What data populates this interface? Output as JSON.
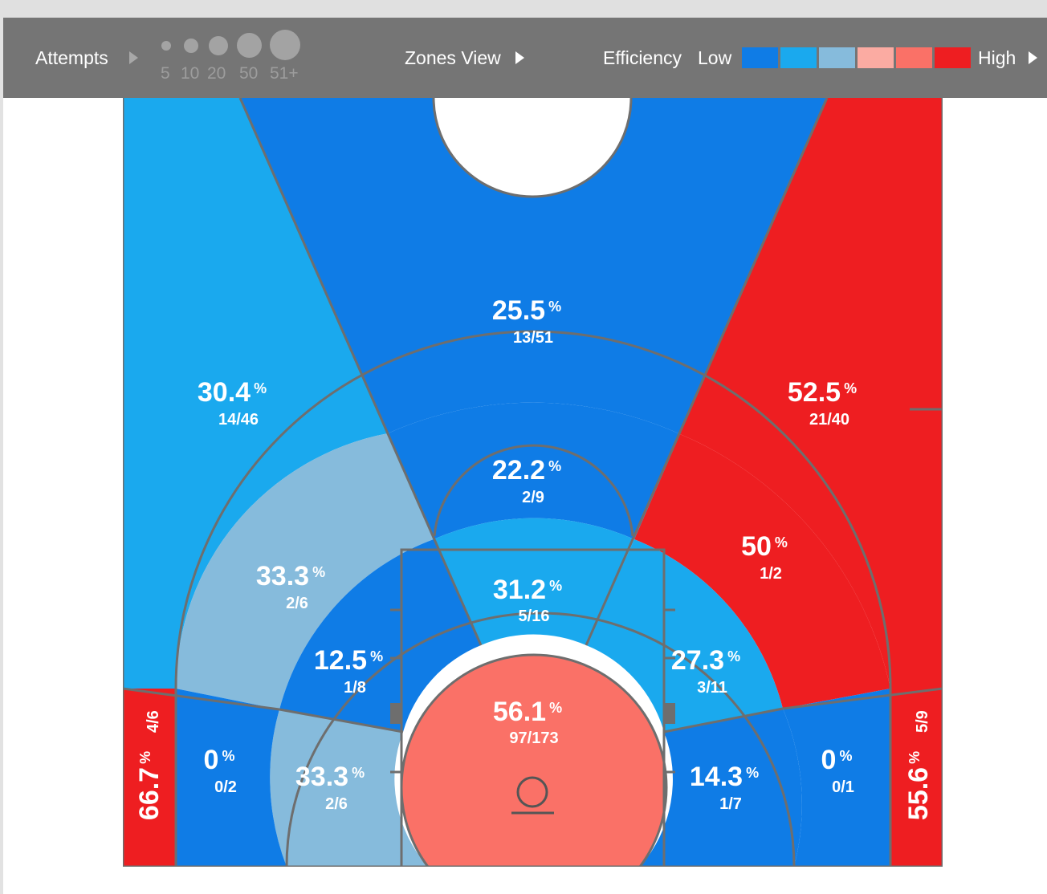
{
  "toolbar": {
    "attempts_label": "Attempts",
    "size_legend": [
      "5",
      "10",
      "20",
      "50",
      "51+"
    ],
    "view_label": "Zones View",
    "efficiency_label": "Efficiency",
    "low_label": "Low",
    "high_label": "High",
    "colors": [
      "#0f7ce6",
      "#1aa9ee",
      "#86bbdc",
      "#fbaba2",
      "#fa7167",
      "#ee1e21"
    ]
  },
  "chart_data": {
    "type": "shot-zone-chart",
    "color_scale": {
      "low": "#0f7ce6",
      "high": "#ee1e21"
    },
    "zones": [
      {
        "zone": "above-the-break-3-center",
        "pct": "25.5",
        "made": 13,
        "attempts": 51,
        "fg": "13/51",
        "color": "#0f7ce6"
      },
      {
        "zone": "above-the-break-3-left",
        "pct": "30.4",
        "made": 14,
        "attempts": 46,
        "fg": "14/46",
        "color": "#1aa9ee"
      },
      {
        "zone": "above-the-break-3-right",
        "pct": "52.5",
        "made": 21,
        "attempts": 40,
        "fg": "21/40",
        "color": "#ee1e21"
      },
      {
        "zone": "mid-range-top",
        "pct": "22.2",
        "made": 2,
        "attempts": 9,
        "fg": "2/9",
        "color": "#0f7ce6"
      },
      {
        "zone": "mid-range-left-wing",
        "pct": "33.3",
        "made": 2,
        "attempts": 6,
        "fg": "2/6",
        "color": "#86bbdc"
      },
      {
        "zone": "mid-range-right-wing",
        "pct": "50",
        "made": 1,
        "attempts": 2,
        "fg": "1/2",
        "color": "#ee1e21"
      },
      {
        "zone": "paint-top",
        "pct": "31.2",
        "made": 5,
        "attempts": 16,
        "fg": "5/16",
        "color": "#1aa9ee"
      },
      {
        "zone": "short-mid-left",
        "pct": "12.5",
        "made": 1,
        "attempts": 8,
        "fg": "1/8",
        "color": "#0f7ce6"
      },
      {
        "zone": "short-mid-right",
        "pct": "27.3",
        "made": 3,
        "attempts": 11,
        "fg": "3/11",
        "color": "#1aa9ee"
      },
      {
        "zone": "restricted-area",
        "pct": "56.1",
        "made": 97,
        "attempts": 173,
        "fg": "97/173",
        "color": "#fa7167"
      },
      {
        "zone": "baseline-mid-left",
        "pct": "33.3",
        "made": 2,
        "attempts": 6,
        "fg": "2/6",
        "color": "#86bbdc"
      },
      {
        "zone": "baseline-mid-right",
        "pct": "14.3",
        "made": 1,
        "attempts": 7,
        "fg": "1/7",
        "color": "#0f7ce6"
      },
      {
        "zone": "long-baseline-left",
        "pct": "0",
        "made": 0,
        "attempts": 2,
        "fg": "0/2",
        "color": "#0f7ce6"
      },
      {
        "zone": "long-baseline-right",
        "pct": "0",
        "made": 0,
        "attempts": 1,
        "fg": "0/1",
        "color": "#0f7ce6"
      },
      {
        "zone": "corner-3-left",
        "pct": "66.7",
        "made": 4,
        "attempts": 6,
        "fg": "4/6",
        "color": "#ee1e21"
      },
      {
        "zone": "corner-3-right",
        "pct": "55.6",
        "made": 5,
        "attempts": 9,
        "fg": "5/9",
        "color": "#ee1e21"
      }
    ]
  }
}
